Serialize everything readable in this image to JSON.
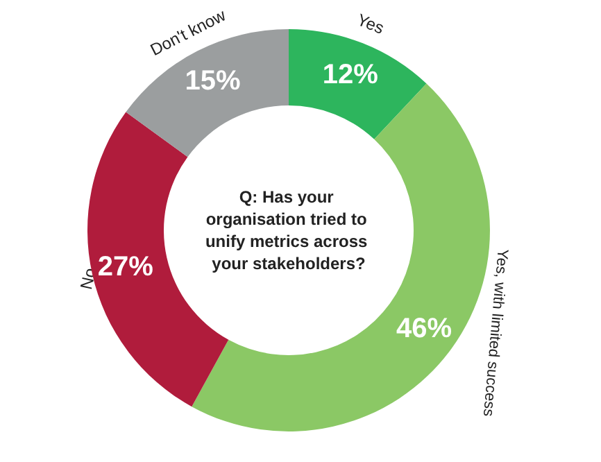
{
  "chart_data": {
    "type": "donut",
    "title": "Q: Has your organisation tried to unify metrics across your stakeholders?",
    "categories": [
      "Yes",
      "Yes, with limited success",
      "No",
      "Don't know"
    ],
    "values": [
      12,
      46,
      27,
      15
    ],
    "colors": [
      "#2db55d",
      "#8bc865",
      "#b01c3c",
      "#9b9e9f"
    ],
    "value_labels": [
      "12%",
      "46%",
      "27%",
      "15%"
    ]
  }
}
